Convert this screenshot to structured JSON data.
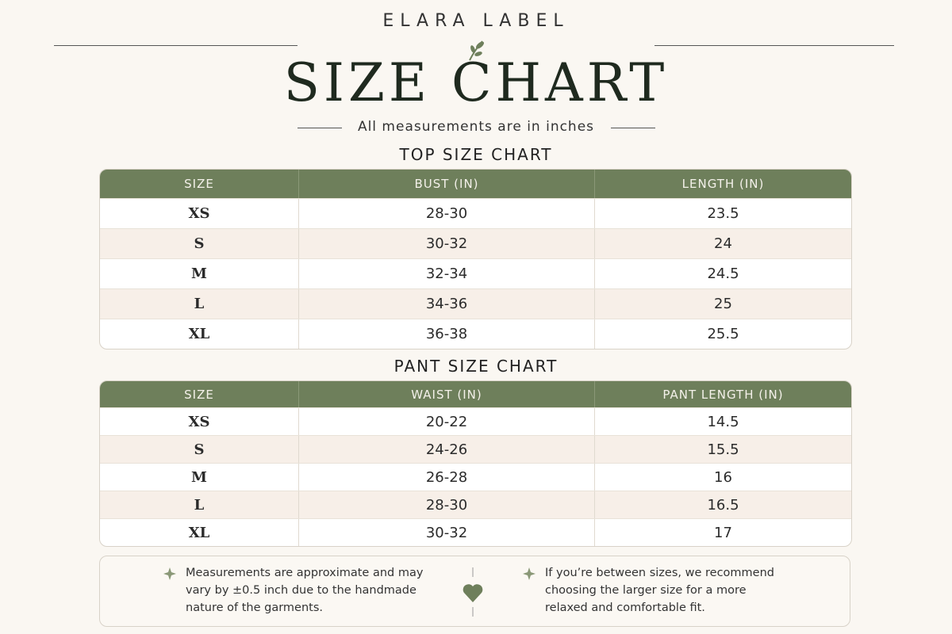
{
  "header": {
    "brand": "ELARA LABEL",
    "title": "SIZE CHART",
    "subtitle": "All measurements are in inches"
  },
  "tables": [
    {
      "title": "TOP SIZE CHART",
      "columns": [
        "SIZE",
        "BUST (IN)",
        "LENGTH (IN)"
      ],
      "rows": [
        [
          "XS",
          "28-30",
          "23.5"
        ],
        [
          "S",
          "30-32",
          "24"
        ],
        [
          "M",
          "32-34",
          "24.5"
        ],
        [
          "L",
          "34-36",
          "25"
        ],
        [
          "XL",
          "36-38",
          "25.5"
        ]
      ]
    },
    {
      "title": "PANT SIZE CHART",
      "columns": [
        "SIZE",
        "WAIST (IN)",
        "PANT LENGTH (IN)"
      ],
      "rows": [
        [
          "XS",
          "20-22",
          "14.5"
        ],
        [
          "S",
          "24-26",
          "15.5"
        ],
        [
          "M",
          "26-28",
          "16"
        ],
        [
          "L",
          "28-30",
          "16.5"
        ],
        [
          "XL",
          "30-32",
          "17"
        ]
      ]
    }
  ],
  "notes": [
    "Measurements are approximate and may vary by ±0.5 inch due to the handmade nature of the garments.",
    "If you’re between sizes, we recommend choosing the larger size for a more relaxed and comfortable fit."
  ]
}
